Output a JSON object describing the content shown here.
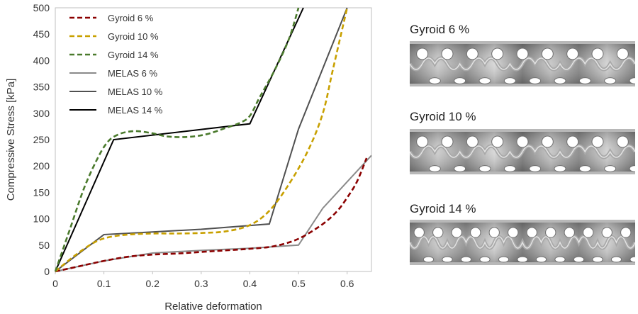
{
  "chart_data": {
    "type": "line",
    "xlabel": "Relative deformation",
    "ylabel": "Compressive Stress  [kPa]",
    "xlim": [
      0,
      0.65
    ],
    "ylim": [
      0,
      500
    ],
    "xticks": [
      0,
      0.1,
      0.2,
      0.3,
      0.4,
      0.5,
      0.6
    ],
    "xtick_labels": [
      "0",
      "0.1",
      "0.2",
      "0.3",
      "0.4",
      "0.5",
      "0.6"
    ],
    "yticks": [
      0,
      50,
      100,
      150,
      200,
      250,
      300,
      350,
      400,
      450,
      500
    ],
    "ytick_labels": [
      "0",
      "50",
      "100",
      "150",
      "200",
      "250",
      "300",
      "350",
      "400",
      "450",
      "500"
    ],
    "legend_position": "top-left",
    "series": [
      {
        "name": "Gyroid 6 %",
        "color": "#8b0000",
        "dash": true,
        "x": [
          0,
          0.05,
          0.1,
          0.15,
          0.2,
          0.25,
          0.3,
          0.35,
          0.4,
          0.45,
          0.5,
          0.55,
          0.58,
          0.6,
          0.62,
          0.64
        ],
        "y": [
          0,
          10,
          20,
          28,
          32,
          34,
          37,
          40,
          43,
          48,
          62,
          90,
          115,
          140,
          170,
          215
        ]
      },
      {
        "name": "Gyroid 10 %",
        "color": "#c8a000",
        "dash": true,
        "x": [
          0,
          0.04,
          0.08,
          0.11,
          0.15,
          0.2,
          0.25,
          0.3,
          0.35,
          0.4,
          0.44,
          0.48,
          0.52,
          0.55,
          0.57,
          0.59,
          0.6
        ],
        "y": [
          0,
          30,
          55,
          65,
          70,
          72,
          72,
          73,
          76,
          88,
          115,
          165,
          230,
          300,
          380,
          460,
          500
        ]
      },
      {
        "name": "Gyroid 14 %",
        "color": "#4a7a2c",
        "dash": true,
        "x": [
          0,
          0.03,
          0.06,
          0.09,
          0.11,
          0.13,
          0.15,
          0.17,
          0.2,
          0.23,
          0.27,
          0.31,
          0.35,
          0.38,
          0.4,
          0.42,
          0.45,
          0.48,
          0.5
        ],
        "y": [
          0,
          80,
          160,
          220,
          248,
          260,
          265,
          266,
          262,
          256,
          255,
          260,
          272,
          282,
          295,
          330,
          380,
          440,
          500
        ]
      },
      {
        "name": "MELAS 6 %",
        "color": "#8a8a8a",
        "dash": false,
        "x": [
          0,
          0.1,
          0.2,
          0.3,
          0.4,
          0.5,
          0.55,
          0.65
        ],
        "y": [
          0,
          20,
          35,
          40,
          44,
          50,
          120,
          220
        ]
      },
      {
        "name": "MELAS 10 %",
        "color": "#505050",
        "dash": false,
        "x": [
          0,
          0.1,
          0.2,
          0.3,
          0.44,
          0.5,
          0.6
        ],
        "y": [
          0,
          70,
          75,
          80,
          90,
          270,
          500
        ]
      },
      {
        "name": "MELAS 14 %",
        "color": "#000000",
        "dash": false,
        "x": [
          0,
          0.12,
          0.4,
          0.51
        ],
        "y": [
          0,
          250,
          280,
          500
        ]
      }
    ]
  },
  "panels": [
    {
      "title": "Gyroid 6 %",
      "holes": 9
    },
    {
      "title": "Gyroid 10 %",
      "holes": 9
    },
    {
      "title": "Gyroid 14 %",
      "holes": 12
    }
  ]
}
